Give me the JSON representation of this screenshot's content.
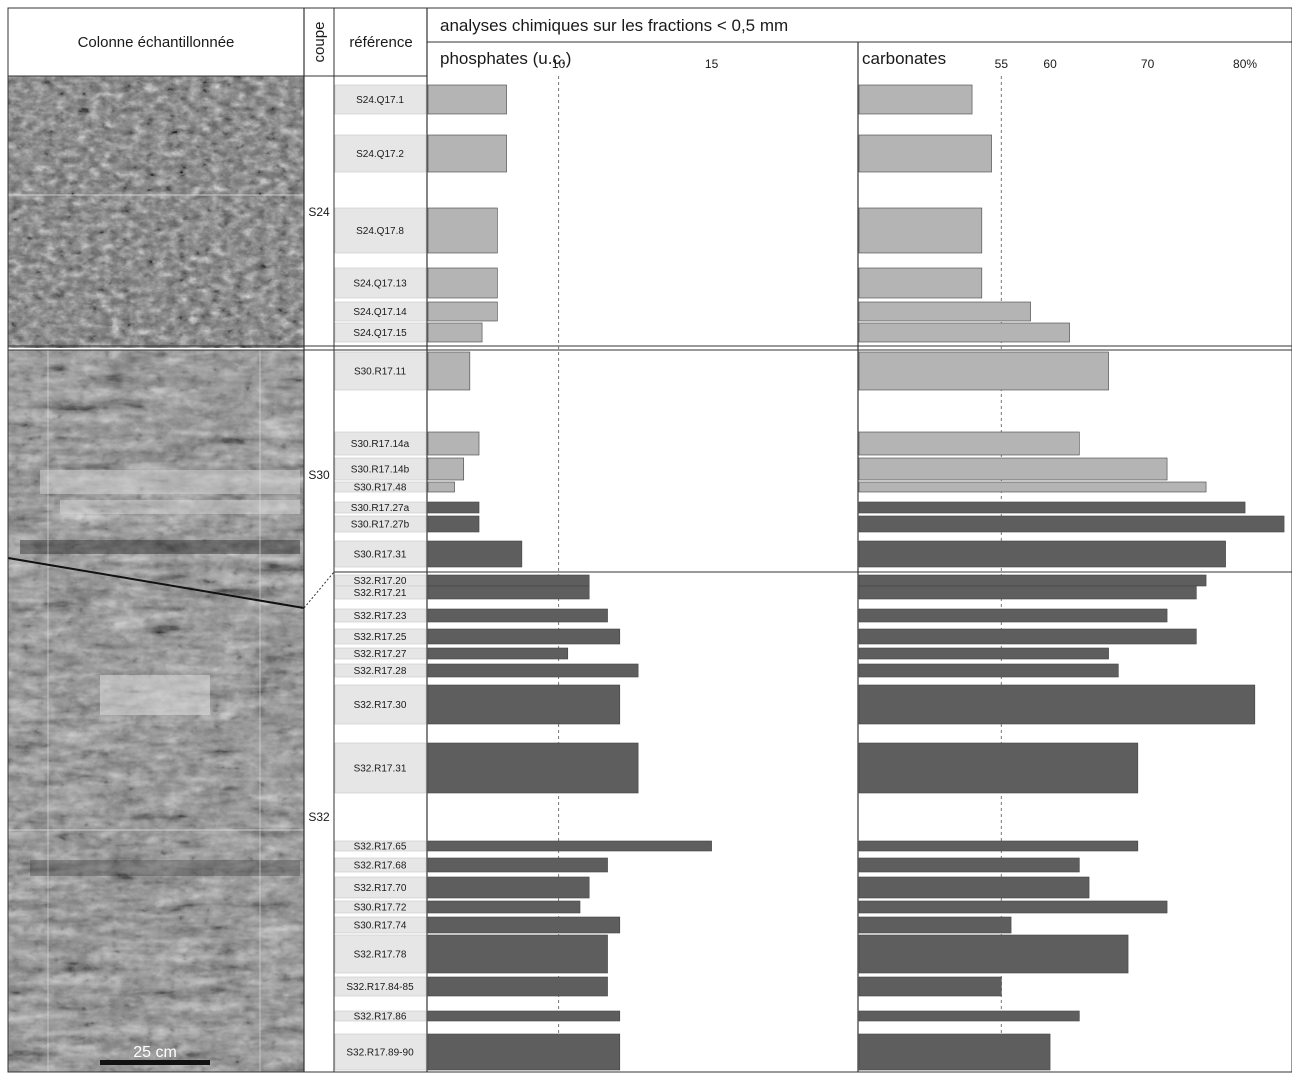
{
  "header": {
    "column_title": "Colonne échantillonnée",
    "coupe_label": "coupe",
    "reference_label": "référence",
    "analysis_title": "analyses chimiques sur les fractions < 0,5 mm"
  },
  "scale_bar_label": "25 cm",
  "chart_data": {
    "type": "bar",
    "orientation": "horizontal",
    "title": "analyses chimiques sur les fractions < 0,5 mm",
    "coupes": [
      {
        "name": "S24",
        "from": "S24.Q17.1",
        "to": "S24.Q17.15"
      },
      {
        "name": "S30",
        "from": "S30.R17.11",
        "to": "S30.R17.31"
      },
      {
        "name": "S32",
        "from": "S32.R17.20",
        "to": "S32.R17.89-90"
      }
    ],
    "categories": [
      "S24.Q17.1",
      "S24.Q17.2",
      "S24.Q17.8",
      "S24.Q17.13",
      "S24.Q17.14",
      "S24.Q17.15",
      "S30.R17.11",
      "S30.R17.14a",
      "S30.R17.14b",
      "S30.R17.48",
      "S30.R17.27a",
      "S30.R17.27b",
      "S30.R17.31",
      "S32.R17.20",
      "S32.R17.21",
      "S32.R17.23",
      "S32.R17.25",
      "S32.R17.27",
      "S32.R17.28",
      "S32.R17.30",
      "S32.R17.31",
      "S32.R17.65",
      "S32.R17.68",
      "S32.R17.70",
      "S30.R17.72",
      "S30.R17.74",
      "S32.R17.78",
      "S32.R17.84-85",
      "S32.R17.86",
      "S32.R17.89-90"
    ],
    "shade": [
      "light",
      "light",
      "light",
      "light",
      "light",
      "light",
      "light",
      "light",
      "light",
      "light",
      "dark",
      "dark",
      "dark",
      "dark",
      "dark",
      "dark",
      "dark",
      "dark",
      "dark",
      "dark",
      "dark",
      "dark",
      "dark",
      "dark",
      "dark",
      "dark",
      "dark",
      "dark",
      "dark",
      "dark"
    ],
    "series": [
      {
        "name": "phosphates (u.c.)",
        "ticks": [
          10,
          15
        ],
        "reference_line": 10,
        "values": [
          8.3,
          8.3,
          8.0,
          8.0,
          8.0,
          7.5,
          7.1,
          7.4,
          6.9,
          6.6,
          7.4,
          7.4,
          8.8,
          11.0,
          11.0,
          11.6,
          12.0,
          10.3,
          12.6,
          12.0,
          12.6,
          15.0,
          11.6,
          11.0,
          10.7,
          12.0,
          11.6,
          11.6,
          12.0,
          12.0
        ]
      },
      {
        "name": "carbonates",
        "ticks": [
          55,
          60,
          70,
          80
        ],
        "tick_labels": [
          "55",
          "60",
          "70",
          "80%"
        ],
        "reference_line": 55,
        "values": [
          52,
          54,
          53,
          53,
          58,
          62,
          66,
          63,
          72,
          76,
          80,
          84,
          78,
          76,
          75,
          72,
          75,
          66,
          67,
          81,
          69,
          69,
          63,
          64,
          72,
          56,
          68,
          55,
          63,
          60
        ]
      }
    ]
  }
}
